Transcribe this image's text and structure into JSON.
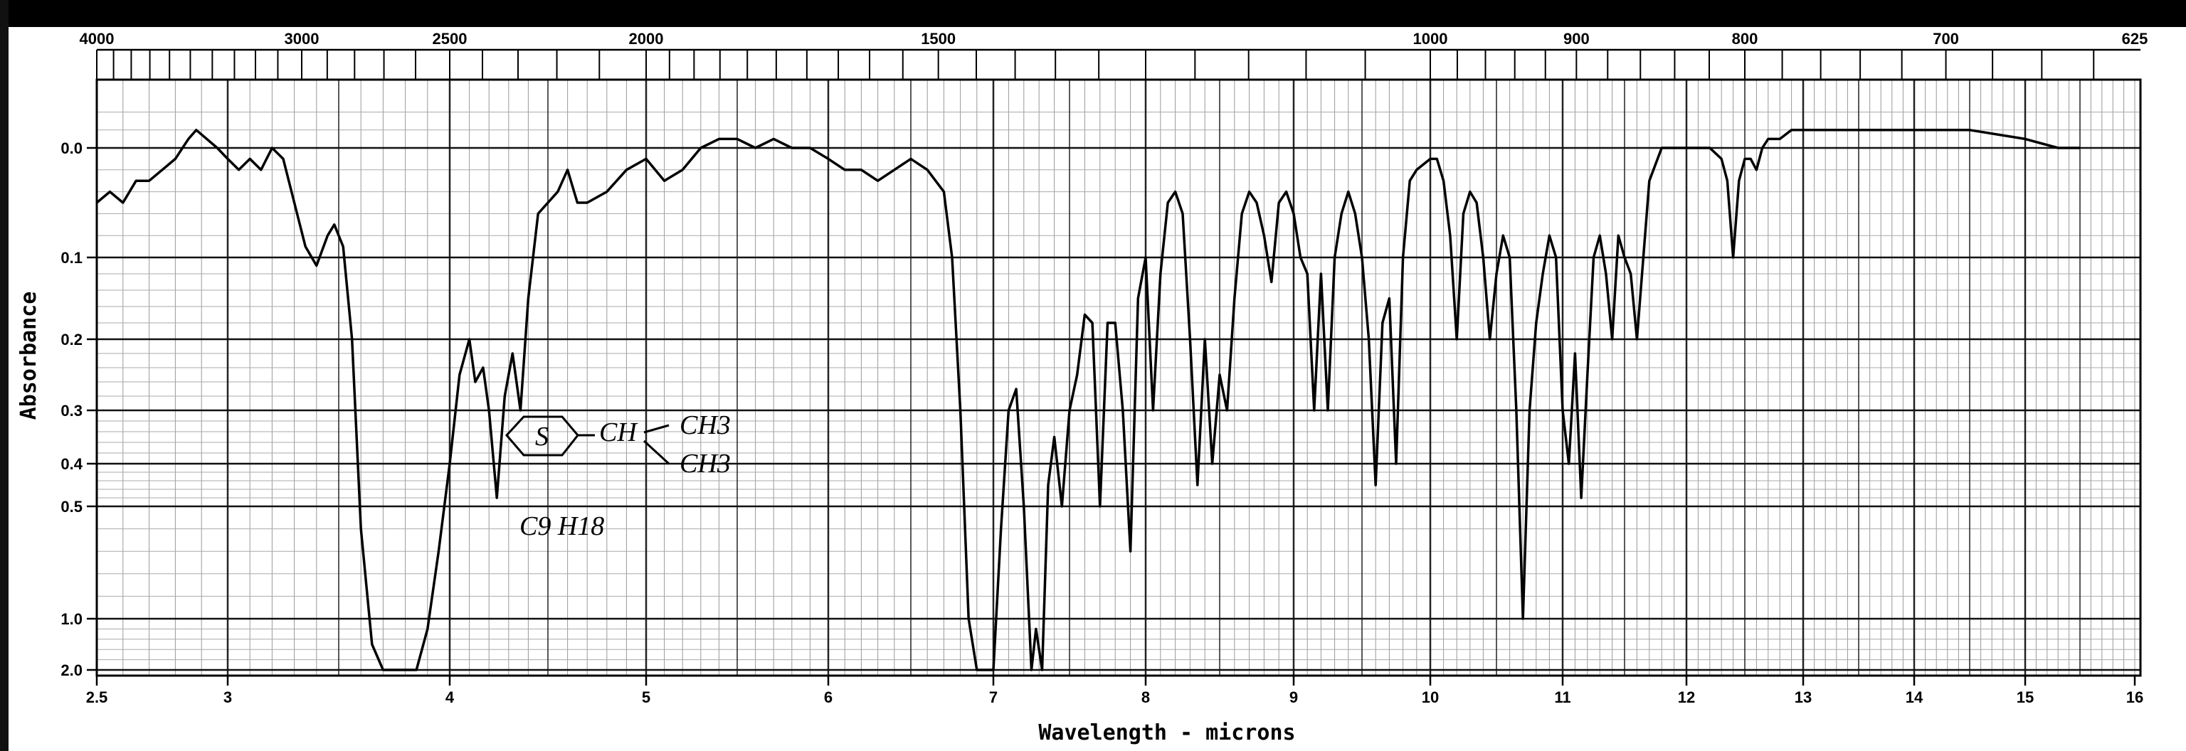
{
  "chart_data": {
    "type": "line",
    "xlabel": "Wavelength - microns",
    "ylabel": "Absorbance",
    "xlim": [
      2.5,
      16
    ],
    "x_ticks": [
      "2.5",
      "3",
      "4",
      "5",
      "6",
      "7",
      "8",
      "9",
      "10",
      "11",
      "12",
      "13",
      "14",
      "15",
      "16"
    ],
    "y_ticks": [
      "0.0",
      "0.1",
      "0.2",
      "0.3",
      "0.4",
      "0.5",
      "1.0",
      "2.0"
    ],
    "top_axis": {
      "label_values": [
        4000,
        3000,
        2500,
        2000,
        1500,
        1000,
        900,
        800,
        700,
        625
      ],
      "tick_labels": [
        "4000",
        "3000",
        "2500",
        "2000",
        "1500",
        "1000",
        "900",
        "800",
        "700",
        "625"
      ]
    },
    "grid": true,
    "annotations": {
      "ring_label": "S",
      "substituent": "CH",
      "methyl_1": "CH3",
      "methyl_2": "CH3",
      "formula": "C9 H18"
    },
    "series": [
      {
        "points": [
          [
            2.5,
            0.05
          ],
          [
            2.55,
            0.04
          ],
          [
            2.6,
            0.05
          ],
          [
            2.65,
            0.03
          ],
          [
            2.7,
            0.03
          ],
          [
            2.75,
            0.02
          ],
          [
            2.8,
            0.01
          ],
          [
            2.85,
            -0.01
          ],
          [
            2.88,
            -0.02
          ],
          [
            2.92,
            -0.01
          ],
          [
            2.96,
            0.0
          ],
          [
            3.0,
            0.01
          ],
          [
            3.05,
            0.02
          ],
          [
            3.1,
            0.01
          ],
          [
            3.15,
            0.02
          ],
          [
            3.2,
            0.0
          ],
          [
            3.25,
            0.01
          ],
          [
            3.3,
            0.05
          ],
          [
            3.35,
            0.09
          ],
          [
            3.4,
            0.11
          ],
          [
            3.45,
            0.08
          ],
          [
            3.48,
            0.07
          ],
          [
            3.52,
            0.09
          ],
          [
            3.56,
            0.2
          ],
          [
            3.6,
            0.6
          ],
          [
            3.65,
            1.5
          ],
          [
            3.7,
            2.0
          ],
          [
            3.85,
            2.0
          ],
          [
            3.9,
            1.2
          ],
          [
            3.95,
            0.7
          ],
          [
            4.0,
            0.4
          ],
          [
            4.05,
            0.25
          ],
          [
            4.1,
            0.2
          ],
          [
            4.13,
            0.26
          ],
          [
            4.17,
            0.24
          ],
          [
            4.2,
            0.3
          ],
          [
            4.24,
            0.48
          ],
          [
            4.28,
            0.28
          ],
          [
            4.32,
            0.22
          ],
          [
            4.36,
            0.3
          ],
          [
            4.4,
            0.15
          ],
          [
            4.45,
            0.06
          ],
          [
            4.5,
            0.05
          ],
          [
            4.55,
            0.04
          ],
          [
            4.6,
            0.02
          ],
          [
            4.65,
            0.05
          ],
          [
            4.7,
            0.05
          ],
          [
            4.8,
            0.04
          ],
          [
            4.9,
            0.02
          ],
          [
            5.0,
            0.01
          ],
          [
            5.1,
            0.03
          ],
          [
            5.2,
            0.02
          ],
          [
            5.3,
            0.0
          ],
          [
            5.4,
            -0.01
          ],
          [
            5.5,
            -0.01
          ],
          [
            5.6,
            0.0
          ],
          [
            5.7,
            -0.01
          ],
          [
            5.8,
            0.0
          ],
          [
            5.9,
            0.0
          ],
          [
            6.0,
            0.01
          ],
          [
            6.1,
            0.02
          ],
          [
            6.2,
            0.02
          ],
          [
            6.3,
            0.03
          ],
          [
            6.4,
            0.02
          ],
          [
            6.5,
            0.01
          ],
          [
            6.6,
            0.02
          ],
          [
            6.7,
            0.04
          ],
          [
            6.75,
            0.1
          ],
          [
            6.8,
            0.3
          ],
          [
            6.85,
            1.0
          ],
          [
            6.9,
            2.0
          ],
          [
            7.0,
            2.0
          ],
          [
            7.05,
            0.6
          ],
          [
            7.1,
            0.3
          ],
          [
            7.15,
            0.27
          ],
          [
            7.2,
            0.5
          ],
          [
            7.25,
            2.0
          ],
          [
            7.28,
            1.2
          ],
          [
            7.32,
            2.0
          ],
          [
            7.36,
            0.45
          ],
          [
            7.4,
            0.35
          ],
          [
            7.45,
            0.5
          ],
          [
            7.5,
            0.3
          ],
          [
            7.55,
            0.25
          ],
          [
            7.6,
            0.17
          ],
          [
            7.65,
            0.18
          ],
          [
            7.7,
            0.5
          ],
          [
            7.75,
            0.18
          ],
          [
            7.8,
            0.18
          ],
          [
            7.85,
            0.3
          ],
          [
            7.9,
            0.7
          ],
          [
            7.95,
            0.15
          ],
          [
            8.0,
            0.1
          ],
          [
            8.05,
            0.3
          ],
          [
            8.1,
            0.12
          ],
          [
            8.15,
            0.05
          ],
          [
            8.2,
            0.04
          ],
          [
            8.25,
            0.06
          ],
          [
            8.3,
            0.2
          ],
          [
            8.35,
            0.45
          ],
          [
            8.4,
            0.2
          ],
          [
            8.45,
            0.4
          ],
          [
            8.5,
            0.25
          ],
          [
            8.55,
            0.3
          ],
          [
            8.6,
            0.15
          ],
          [
            8.65,
            0.06
          ],
          [
            8.7,
            0.04
          ],
          [
            8.75,
            0.05
          ],
          [
            8.8,
            0.08
          ],
          [
            8.85,
            0.13
          ],
          [
            8.9,
            0.05
          ],
          [
            8.95,
            0.04
          ],
          [
            9.0,
            0.06
          ],
          [
            9.05,
            0.1
          ],
          [
            9.1,
            0.12
          ],
          [
            9.15,
            0.3
          ],
          [
            9.2,
            0.12
          ],
          [
            9.25,
            0.3
          ],
          [
            9.3,
            0.1
          ],
          [
            9.35,
            0.06
          ],
          [
            9.4,
            0.04
          ],
          [
            9.45,
            0.06
          ],
          [
            9.5,
            0.1
          ],
          [
            9.55,
            0.2
          ],
          [
            9.6,
            0.45
          ],
          [
            9.65,
            0.18
          ],
          [
            9.7,
            0.15
          ],
          [
            9.75,
            0.4
          ],
          [
            9.8,
            0.1
          ],
          [
            9.85,
            0.03
          ],
          [
            9.9,
            0.02
          ],
          [
            10.0,
            0.01
          ],
          [
            10.05,
            0.01
          ],
          [
            10.1,
            0.03
          ],
          [
            10.15,
            0.08
          ],
          [
            10.2,
            0.2
          ],
          [
            10.25,
            0.06
          ],
          [
            10.3,
            0.04
          ],
          [
            10.35,
            0.05
          ],
          [
            10.4,
            0.1
          ],
          [
            10.45,
            0.2
          ],
          [
            10.5,
            0.12
          ],
          [
            10.55,
            0.08
          ],
          [
            10.6,
            0.1
          ],
          [
            10.65,
            0.3
          ],
          [
            10.7,
            1.0
          ],
          [
            10.75,
            0.3
          ],
          [
            10.8,
            0.18
          ],
          [
            10.85,
            0.12
          ],
          [
            10.9,
            0.08
          ],
          [
            10.95,
            0.1
          ],
          [
            11.0,
            0.3
          ],
          [
            11.05,
            0.4
          ],
          [
            11.1,
            0.22
          ],
          [
            11.15,
            0.48
          ],
          [
            11.2,
            0.25
          ],
          [
            11.25,
            0.1
          ],
          [
            11.3,
            0.08
          ],
          [
            11.35,
            0.12
          ],
          [
            11.4,
            0.2
          ],
          [
            11.45,
            0.08
          ],
          [
            11.5,
            0.1
          ],
          [
            11.55,
            0.12
          ],
          [
            11.6,
            0.2
          ],
          [
            11.7,
            0.03
          ],
          [
            11.8,
            0.0
          ],
          [
            11.9,
            0.0
          ],
          [
            12.0,
            0.0
          ],
          [
            12.1,
            0.0
          ],
          [
            12.2,
            0.0
          ],
          [
            12.3,
            0.01
          ],
          [
            12.35,
            0.03
          ],
          [
            12.4,
            0.1
          ],
          [
            12.45,
            0.03
          ],
          [
            12.5,
            0.01
          ],
          [
            12.55,
            0.01
          ],
          [
            12.6,
            0.02
          ],
          [
            12.65,
            0.0
          ],
          [
            12.7,
            -0.01
          ],
          [
            12.8,
            -0.01
          ],
          [
            12.9,
            -0.02
          ],
          [
            13.0,
            -0.02
          ],
          [
            13.5,
            -0.02
          ],
          [
            13.9,
            -0.02
          ],
          [
            14.0,
            -0.02
          ],
          [
            14.5,
            -0.02
          ],
          [
            15.0,
            -0.01
          ],
          [
            15.3,
            0.0
          ],
          [
            15.5,
            0.0
          ]
        ]
      }
    ]
  }
}
